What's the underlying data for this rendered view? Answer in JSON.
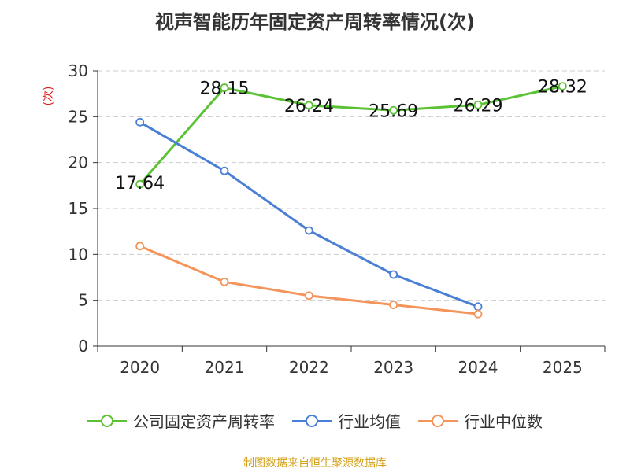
{
  "chart_data": {
    "type": "line",
    "title": "视声智能历年固定资产周转率情况(次)",
    "ylabel": "(次)",
    "xlabel": "",
    "categories": [
      "2020",
      "2021",
      "2022",
      "2023",
      "2024",
      "2025"
    ],
    "ylim": [
      0,
      30
    ],
    "yticks": [
      0,
      5,
      10,
      15,
      20,
      25,
      30
    ],
    "grid": true,
    "legend_position": "bottom",
    "series": [
      {
        "name": "公司固定资产周转率",
        "color": "#5bc234",
        "values": [
          17.64,
          28.15,
          26.24,
          25.69,
          26.29,
          28.32
        ],
        "labels": [
          "17.64",
          "28.15",
          "26.24",
          "25.69",
          "26.29",
          "28.32"
        ]
      },
      {
        "name": "行业均值",
        "color": "#4a7fd6",
        "values": [
          24.4,
          19.1,
          12.6,
          7.8,
          4.3,
          null
        ]
      },
      {
        "name": "行业中位数",
        "color": "#f4945a",
        "values": [
          10.9,
          7.0,
          5.5,
          4.5,
          3.5,
          null
        ]
      }
    ]
  },
  "source": "制图数据来自恒生聚源数据库"
}
